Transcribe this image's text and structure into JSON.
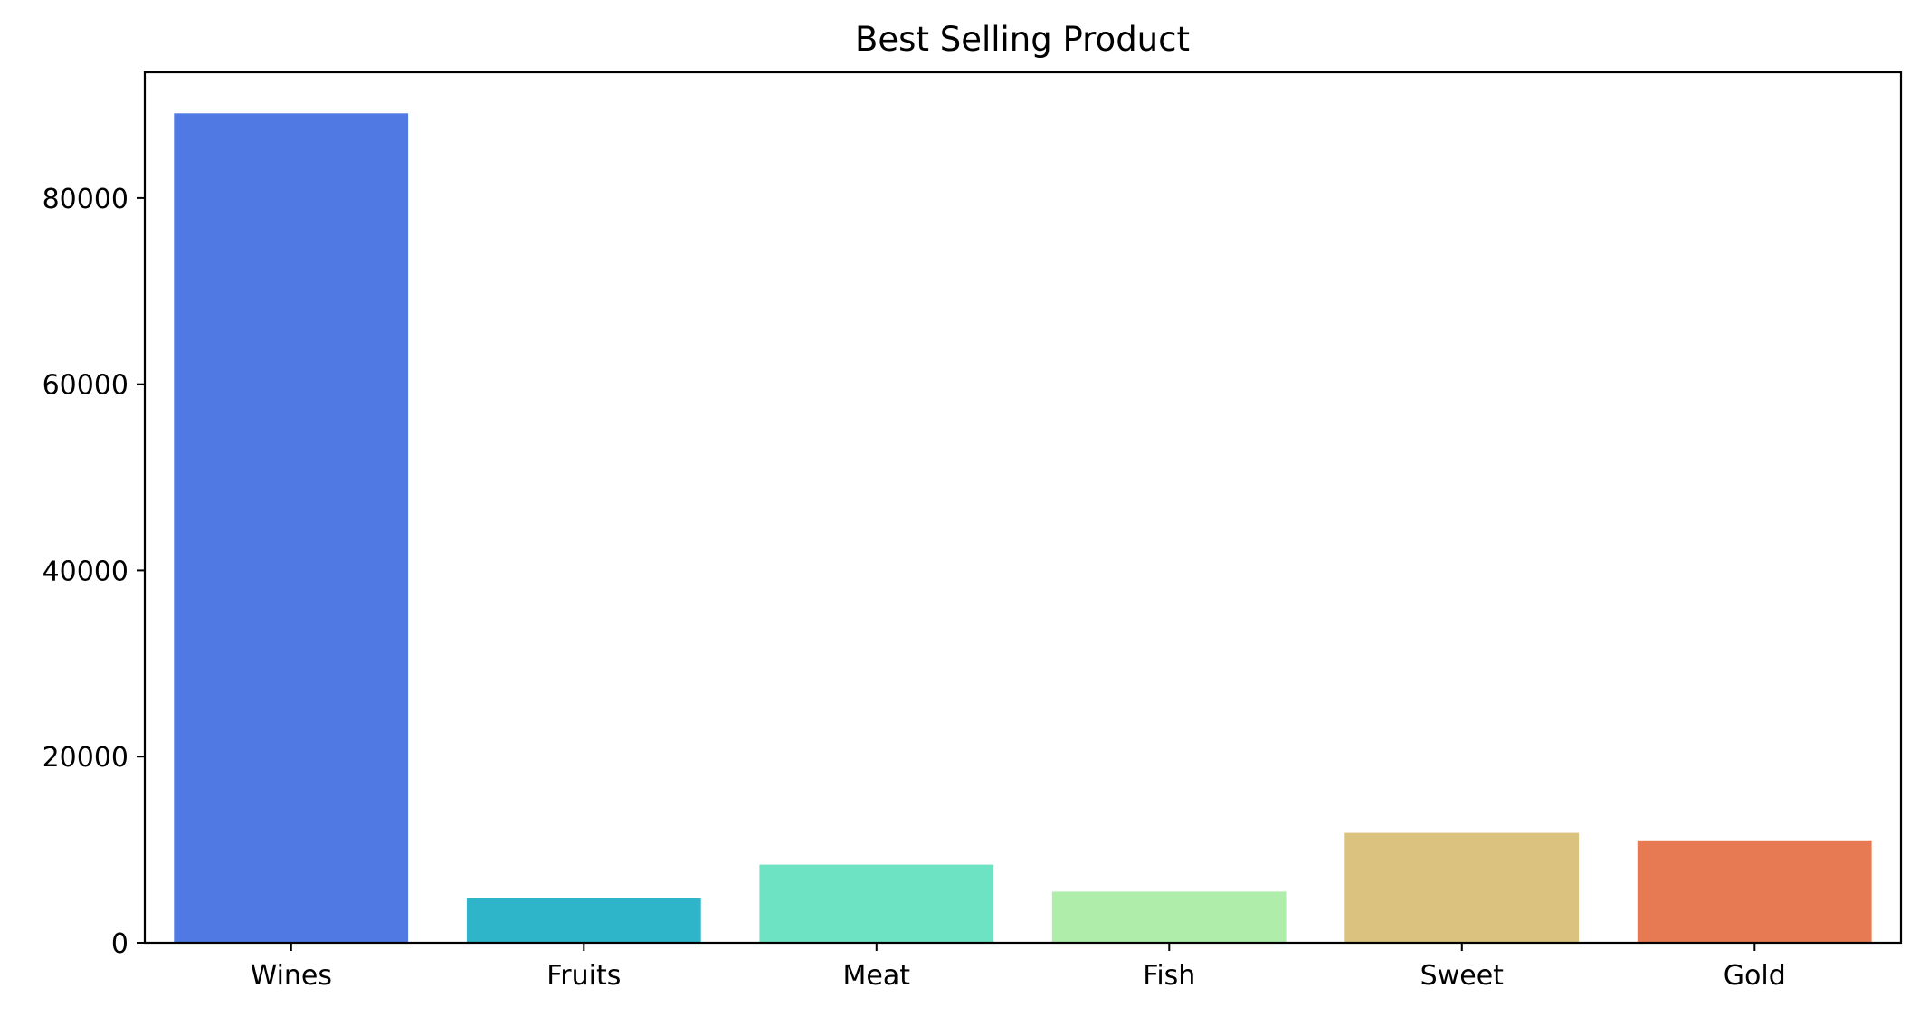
{
  "chart_data": {
    "type": "bar",
    "title": "Best Selling Product",
    "xlabel": "",
    "ylabel": "",
    "categories": [
      "Wines",
      "Fruits",
      "Meat",
      "Fish",
      "Sweet",
      "Gold"
    ],
    "values": [
      89100,
      4800,
      8400,
      5500,
      11800,
      11000
    ],
    "colors": [
      "#5079e3",
      "#2eb5ca",
      "#6ee3c3",
      "#aeeeaa",
      "#dcc27f",
      "#e77a52"
    ],
    "ylim": [
      0,
      93500
    ],
    "yticks": [
      0,
      20000,
      40000,
      60000,
      80000
    ],
    "ytick_labels": [
      "0",
      "20000",
      "40000",
      "60000",
      "80000"
    ],
    "grid": false,
    "legend": false
  }
}
